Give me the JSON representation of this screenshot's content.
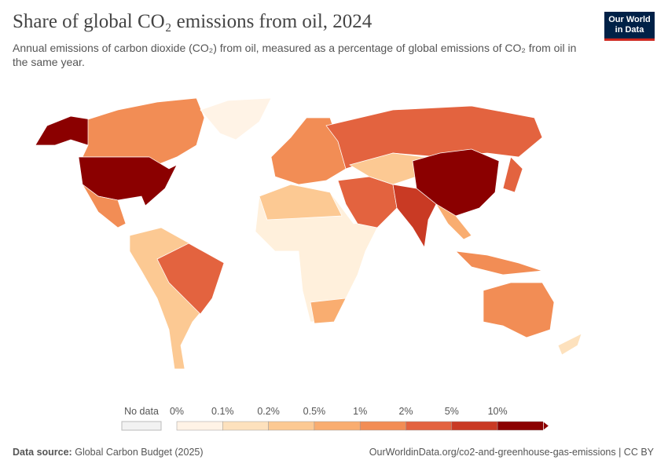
{
  "header": {
    "title": "Share of global CO₂ emissions from oil, 2024",
    "subtitle": "Annual emissions of carbon dioxide (CO₂) from oil, measured as a percentage of global emissions of CO₂ from oil in the same year.",
    "logo": [
      "Our World",
      "in Data"
    ]
  },
  "legend": {
    "no_data": "No data",
    "labels": [
      "0%",
      "0.1%",
      "0.2%",
      "0.5%",
      "1%",
      "2%",
      "5%",
      "10%"
    ],
    "colors": [
      "#fff3e6",
      "#fde1bd",
      "#fcc993",
      "#f9ad70",
      "#f28d55",
      "#e3633f",
      "#c93a24",
      "#8b0000"
    ]
  },
  "footer": {
    "source_label": "Data source:",
    "source": "Global Carbon Budget (2025)",
    "url": "OurWorldinData.org/co2-and-greenhouse-gas-emissions | CC BY"
  }
}
